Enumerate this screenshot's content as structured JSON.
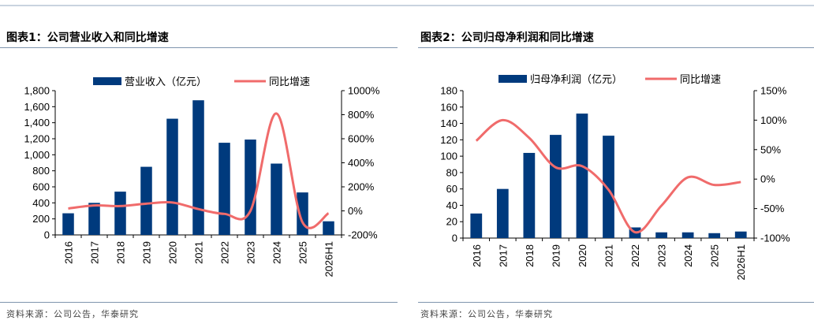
{
  "panels": [
    {
      "title": "图表1：公司营业收入和同比增速",
      "source": "资料来源：公司公告，华泰研究",
      "legend": {
        "bar": "营业收入（亿元）",
        "line": "同比增速"
      }
    },
    {
      "title": "图表2：公司归母净利润和同比增速",
      "source": "资料来源：公司公告，华泰研究",
      "legend": {
        "bar": "归母净利润（亿元）",
        "line": "同比增速"
      }
    }
  ],
  "colors": {
    "bar": "#003a7d",
    "line": "#f06b6b",
    "rule": "#7f95ad"
  },
  "chart_data": [
    {
      "type": "bar",
      "title": "图表1：公司营业收入和同比增速",
      "categories": [
        "2016",
        "2017",
        "2018",
        "2019",
        "2020",
        "2021",
        "2022",
        "2023",
        "2024",
        "2025",
        "2026H1"
      ],
      "series": [
        {
          "name": "营业收入（亿元）",
          "type": "bar",
          "axis": "left",
          "values": [
            270,
            400,
            540,
            850,
            1450,
            1680,
            1150,
            1190,
            890,
            530,
            170
          ]
        },
        {
          "name": "同比增速",
          "type": "line",
          "axis": "right",
          "unit": "%",
          "values": [
            20,
            45,
            40,
            60,
            70,
            15,
            -25,
            0,
            810,
            -95,
            -20
          ]
        }
      ],
      "y_left": {
        "min": 0,
        "max": 1800,
        "step": 200,
        "ticks": [
          "0",
          "200",
          "400",
          "600",
          "800",
          "1,000",
          "1,200",
          "1,400",
          "1,600",
          "1,800"
        ]
      },
      "y_right": {
        "min": -200,
        "max": 1000,
        "step": 200,
        "ticks": [
          "-200%",
          "0%",
          "200%",
          "400%",
          "600%",
          "800%",
          "1000%"
        ]
      },
      "legend_position": "top"
    },
    {
      "type": "bar",
      "title": "图表2：公司归母净利润和同比增速",
      "categories": [
        "2016",
        "2017",
        "2018",
        "2019",
        "2020",
        "2021",
        "2022",
        "2023",
        "2024",
        "2025",
        "2026H1"
      ],
      "series": [
        {
          "name": "归母净利润（亿元）",
          "type": "bar",
          "axis": "left",
          "values": [
            30,
            60,
            104,
            126,
            152,
            125,
            13,
            7,
            7,
            6,
            8
          ]
        },
        {
          "name": "同比增速",
          "type": "line",
          "axis": "right",
          "unit": "%",
          "values": [
            65,
            100,
            70,
            20,
            22,
            -18,
            -90,
            -45,
            3,
            -10,
            -5
          ]
        }
      ],
      "y_left": {
        "min": 0,
        "max": 180,
        "step": 20,
        "ticks": [
          "0",
          "20",
          "40",
          "60",
          "80",
          "100",
          "120",
          "140",
          "160",
          "180"
        ]
      },
      "y_right": {
        "min": -100,
        "max": 150,
        "step": 50,
        "ticks": [
          "-100%",
          "-50%",
          "0%",
          "50%",
          "100%",
          "150%"
        ]
      },
      "legend_position": "top"
    }
  ]
}
